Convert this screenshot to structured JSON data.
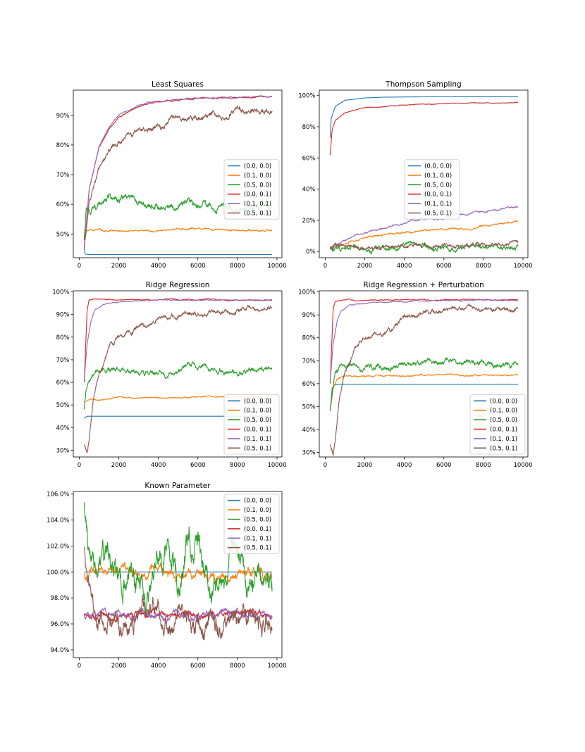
{
  "colors": {
    "C0": "#1f77b4",
    "C1": "#ff7f0e",
    "C2": "#2ca02c",
    "C3": "#d62728",
    "C4": "#9467bd",
    "C5": "#8c564b"
  },
  "legend_labels": [
    "(0.0, 0.0)",
    "(0.1, 0.0)",
    "(0.5, 0.0)",
    "(0.0, 0.1)",
    "(0.1, 0.1)",
    "(0.5, 0.1)"
  ],
  "chart_data": [
    {
      "type": "line",
      "title": "Least Squares",
      "xlim": [
        -300,
        10250
      ],
      "ylim": [
        42,
        98.5
      ],
      "xticks": [
        0,
        2000,
        4000,
        6000,
        8000,
        10000
      ],
      "xtick_labels": [
        "0",
        "2000",
        "4000",
        "6000",
        "8000",
        "10000"
      ],
      "yticks": [
        50,
        60,
        70,
        80,
        90
      ],
      "ytick_labels": [
        "50%",
        "60%",
        "70%",
        "80%",
        "90%"
      ],
      "legend": "center-right",
      "series": [
        {
          "name": "(0.0, 0.0)",
          "color": "#1f77b4",
          "x": [
            250,
            300,
            500,
            1000,
            9750
          ],
          "y": [
            45,
            43.2,
            43.1,
            43.1,
            43.1
          ],
          "noise": 0
        },
        {
          "name": "(0.1, 0.0)",
          "color": "#ff7f0e",
          "x": [
            250,
            300,
            500,
            2000,
            4000,
            6000,
            8000,
            9750
          ],
          "y": [
            48,
            51.5,
            51.5,
            51.2,
            51.2,
            51.8,
            51.2,
            51.2
          ],
          "noise": 0.3
        },
        {
          "name": "(0.5, 0.0)",
          "color": "#2ca02c",
          "x": [
            250,
            350,
            500,
            1000,
            1500,
            2000,
            3000,
            4000,
            5000,
            5800,
            6000,
            7000,
            8000,
            9000,
            9750
          ],
          "y": [
            48,
            57,
            58.5,
            60,
            62,
            61,
            60.5,
            60,
            59.5,
            61.5,
            60,
            59,
            58.5,
            59,
            59.5
          ],
          "noise": 1.3
        },
        {
          "name": "(0.0, 0.1)",
          "color": "#d62728",
          "x": [
            250,
            500,
            1000,
            1500,
            2000,
            3000,
            4000,
            5000,
            6000,
            7000,
            8000,
            9000,
            9750
          ],
          "y": [
            45,
            65,
            79,
            85.5,
            89.5,
            93,
            94.5,
            95.2,
            95.7,
            96,
            96,
            96.1,
            96.2
          ],
          "noise": 0.2
        },
        {
          "name": "(0.1, 0.1)",
          "color": "#9467bd",
          "x": [
            250,
            500,
            1000,
            1500,
            2000,
            3000,
            4000,
            5000,
            6000,
            7000,
            8000,
            9000,
            9750
          ],
          "y": [
            45,
            65,
            79.5,
            86,
            90,
            93.4,
            94.8,
            95.3,
            95.6,
            95.9,
            96,
            96.1,
            96.2
          ],
          "noise": 0.2
        },
        {
          "name": "(0.5, 0.1)",
          "color": "#8c564b",
          "x": [
            250,
            500,
            1000,
            1500,
            2000,
            3000,
            4000,
            5000,
            6000,
            7000,
            8000,
            9000,
            9750
          ],
          "y": [
            45,
            62,
            73,
            78,
            81,
            84,
            86.5,
            89,
            89,
            90,
            91,
            91.5,
            92
          ],
          "noise": 1.0
        }
      ]
    },
    {
      "type": "line",
      "title": "Thompson Sampling",
      "xlim": [
        -300,
        10250
      ],
      "ylim": [
        -4,
        103.5
      ],
      "xticks": [
        0,
        2000,
        4000,
        6000,
        8000,
        10000
      ],
      "xtick_labels": [
        "0",
        "2000",
        "4000",
        "6000",
        "8000",
        "10000"
      ],
      "yticks": [
        0,
        20,
        40,
        60,
        80,
        100
      ],
      "ytick_labels": [
        "0%",
        "20%",
        "40%",
        "60%",
        "80%",
        "100%"
      ],
      "legend": "center",
      "series": [
        {
          "name": "(0.0, 0.0)",
          "color": "#1f77b4",
          "x": [
            250,
            300,
            500,
            1000,
            2000,
            3000,
            5000,
            9750
          ],
          "y": [
            73,
            85,
            93,
            97,
            98.5,
            99,
            99.2,
            99.3
          ],
          "noise": 0
        },
        {
          "name": "(0.1, 0.0)",
          "color": "#ff7f0e",
          "x": [
            250,
            1000,
            2000,
            4000,
            6000,
            8000,
            9750
          ],
          "y": [
            2,
            6,
            9,
            12,
            14,
            16,
            18.5
          ],
          "noise": 0.6
        },
        {
          "name": "(0.5, 0.0)",
          "color": "#2ca02c",
          "x": [
            250,
            1000,
            2000,
            3000,
            4000,
            6000,
            8000,
            9750
          ],
          "y": [
            3,
            1.5,
            1,
            2,
            3,
            2.5,
            3,
            3
          ],
          "noise": 1.6
        },
        {
          "name": "(0.0, 0.1)",
          "color": "#d62728",
          "x": [
            250,
            350,
            500,
            1000,
            2000,
            3000,
            4000,
            6000,
            8000,
            9750
          ],
          "y": [
            62,
            78,
            84,
            89,
            92,
            93,
            94,
            94.8,
            95.3,
            95.5
          ],
          "noise": 0.2
        },
        {
          "name": "(0.1, 0.1)",
          "color": "#9467bd",
          "x": [
            250,
            1000,
            2000,
            4000,
            6000,
            8000,
            9750
          ],
          "y": [
            3,
            8,
            12,
            18,
            22,
            26,
            29.5
          ],
          "noise": 0.6
        },
        {
          "name": "(0.5, 0.1)",
          "color": "#8c564b",
          "x": [
            250,
            1000,
            2000,
            3000,
            4000,
            6000,
            8000,
            9750
          ],
          "y": [
            3,
            3,
            2.5,
            3,
            3.5,
            4,
            5,
            5
          ],
          "noise": 1.2
        }
      ]
    },
    {
      "type": "line",
      "title": "Ridge Regression",
      "xlim": [
        -300,
        10250
      ],
      "ylim": [
        27,
        100.5
      ],
      "xticks": [
        0,
        2000,
        4000,
        6000,
        8000,
        10000
      ],
      "xtick_labels": [
        "0",
        "2000",
        "4000",
        "6000",
        "8000",
        "10000"
      ],
      "yticks": [
        30,
        40,
        50,
        60,
        70,
        80,
        90,
        100
      ],
      "ytick_labels": [
        "30%",
        "40%",
        "50%",
        "60%",
        "70%",
        "80%",
        "90%",
        "100%"
      ],
      "legend": "lower-right",
      "series": [
        {
          "name": "(0.0, 0.0)",
          "color": "#1f77b4",
          "x": [
            250,
            300,
            400,
            600,
            9750
          ],
          "y": [
            44,
            44.5,
            45,
            45,
            45
          ],
          "noise": 0
        },
        {
          "name": "(0.1, 0.0)",
          "color": "#ff7f0e",
          "x": [
            250,
            500,
            1000,
            2000,
            4000,
            5500,
            6000,
            8000,
            9750
          ],
          "y": [
            51.5,
            52,
            52.5,
            53,
            53,
            53.2,
            53.8,
            53.3,
            53
          ],
          "noise": 0.3
        },
        {
          "name": "(0.5, 0.0)",
          "color": "#2ca02c",
          "x": [
            250,
            350,
            500,
            800,
            1200,
            2000,
            3000,
            4000,
            5000,
            5800,
            6000,
            7000,
            8000,
            9000,
            9750
          ],
          "y": [
            48,
            57,
            62,
            65,
            66.5,
            66,
            65.5,
            65,
            65.5,
            68.5,
            66,
            65.5,
            65.5,
            65.3,
            65.5
          ],
          "noise": 1.2
        },
        {
          "name": "(0.0, 0.1)",
          "color": "#d62728",
          "x": [
            250,
            400,
            500,
            1000,
            2000,
            4000,
            6000,
            8000,
            9750
          ],
          "y": [
            60,
            92,
            96.5,
            96.7,
            96.6,
            96.6,
            96.5,
            96.4,
            96.3
          ],
          "noise": 0.2
        },
        {
          "name": "(0.1, 0.1)",
          "color": "#9467bd",
          "x": [
            250,
            400,
            600,
            800,
            1200,
            2000,
            3000,
            4000,
            6000,
            8000,
            9750
          ],
          "y": [
            61,
            77,
            87,
            92,
            94.5,
            95.5,
            96,
            96.3,
            96.4,
            96.4,
            96.4
          ],
          "noise": 0.2
        },
        {
          "name": "(0.5, 0.1)",
          "color": "#8c564b",
          "x": [
            250,
            400,
            500,
            700,
            1000,
            1500,
            2000,
            3000,
            4000,
            5000,
            6000,
            7000,
            8000,
            9000,
            9750
          ],
          "y": [
            32,
            29,
            35,
            52,
            63,
            74,
            80,
            85,
            88,
            90,
            91,
            91.5,
            92,
            92.5,
            92.5
          ],
          "noise": 1.0
        }
      ]
    },
    {
      "type": "line",
      "title": "Ridge Regression + Perturbation",
      "xlim": [
        -300,
        10250
      ],
      "ylim": [
        28,
        100.5
      ],
      "xticks": [
        0,
        2000,
        4000,
        6000,
        8000,
        10000
      ],
      "xtick_labels": [
        "0",
        "2000",
        "4000",
        "6000",
        "8000",
        "10000"
      ],
      "yticks": [
        30,
        40,
        50,
        60,
        70,
        80,
        90,
        100
      ],
      "ytick_labels": [
        "30%",
        "40%",
        "50%",
        "60%",
        "70%",
        "80%",
        "90%",
        "100%"
      ],
      "legend": "lower-right",
      "series": [
        {
          "name": "(0.0, 0.0)",
          "color": "#1f77b4",
          "x": [
            250,
            350,
            500,
            800,
            9750
          ],
          "y": [
            48,
            58,
            59.5,
            59.7,
            59.7
          ],
          "noise": 0
        },
        {
          "name": "(0.1, 0.0)",
          "color": "#ff7f0e",
          "x": [
            250,
            400,
            600,
            1000,
            2000,
            4000,
            6000,
            8000,
            9750
          ],
          "y": [
            48,
            58,
            62,
            63,
            63.5,
            63.5,
            64,
            63.5,
            63.5
          ],
          "noise": 0.3
        },
        {
          "name": "(0.5, 0.0)",
          "color": "#2ca02c",
          "x": [
            250,
            350,
            500,
            800,
            1200,
            2000,
            3000,
            4000,
            5000,
            6000,
            7000,
            8000,
            9000,
            9750
          ],
          "y": [
            48,
            56,
            63,
            66.5,
            67,
            67.5,
            68,
            69,
            69.5,
            70,
            68,
            68.5,
            68.5,
            68.5
          ],
          "noise": 1.2
        },
        {
          "name": "(0.0, 0.1)",
          "color": "#d62728",
          "x": [
            250,
            400,
            500,
            1000,
            2000,
            4000,
            6000,
            8000,
            9750
          ],
          "y": [
            60,
            92,
            95.5,
            96.3,
            96.5,
            96.6,
            96.6,
            96.5,
            96.4
          ],
          "noise": 0.2
        },
        {
          "name": "(0.1, 0.1)",
          "color": "#9467bd",
          "x": [
            250,
            400,
            600,
            800,
            1200,
            2000,
            3000,
            4000,
            6000,
            8000,
            9750
          ],
          "y": [
            61,
            77,
            87,
            91.5,
            94,
            95,
            95.8,
            96,
            96.3,
            96.4,
            96.4
          ],
          "noise": 0.2
        },
        {
          "name": "(0.5, 0.1)",
          "color": "#8c564b",
          "x": [
            250,
            400,
            500,
            700,
            1000,
            1500,
            2000,
            3000,
            4000,
            5000,
            6000,
            7000,
            8000,
            9000,
            9750
          ],
          "y": [
            33,
            30,
            36,
            52,
            64,
            74,
            79,
            84,
            88,
            91,
            92,
            92.5,
            93,
            93.5,
            93
          ],
          "noise": 1.0
        }
      ]
    },
    {
      "type": "line",
      "title": "Known Parameter",
      "xlim": [
        -300,
        10250
      ],
      "ylim": [
        93.4,
        106.2
      ],
      "xticks": [
        0,
        2000,
        4000,
        6000,
        8000,
        10000
      ],
      "xtick_labels": [
        "0",
        "2000",
        "4000",
        "6000",
        "8000",
        "10000"
      ],
      "yticks": [
        94,
        96,
        98,
        100,
        102,
        104,
        106
      ],
      "ytick_labels": [
        "94.0%",
        "96.0%",
        "98.0%",
        "100.0%",
        "102.0%",
        "104.0%",
        "106.0%"
      ],
      "legend": "upper-right",
      "series": [
        {
          "name": "(0.0, 0.0)",
          "color": "#1f77b4",
          "x": [
            250,
            9750
          ],
          "y": [
            100,
            100
          ],
          "noise": 0
        },
        {
          "name": "(0.1, 0.0)",
          "color": "#ff7f0e",
          "x": [
            250,
            1000,
            2000,
            3000,
            4000,
            5000,
            6000,
            7000,
            8000,
            9000,
            9750
          ],
          "y": [
            100,
            99.8,
            100.1,
            99.8,
            100,
            99.7,
            99.9,
            99.8,
            100,
            99.8,
            99.7
          ],
          "noise": 0.4
        },
        {
          "name": "(0.5, 0.0)",
          "color": "#2ca02c",
          "x": [
            250,
            500,
            1000,
            1500,
            2000,
            2500,
            3000,
            3500,
            4000,
            4500,
            5000,
            5500,
            6000,
            6500,
            7000,
            7500,
            8000,
            8500,
            9000,
            9500,
            9750
          ],
          "y": [
            105.5,
            100.5,
            99.5,
            101,
            99,
            100.5,
            99,
            98.5,
            100,
            102.5,
            98.5,
            101,
            103,
            99,
            98,
            100,
            101,
            99,
            101,
            99.5,
            98.5
          ],
          "noise": 1.1
        },
        {
          "name": "(0.0, 0.1)",
          "color": "#d62728",
          "x": [
            250,
            1000,
            2000,
            3000,
            4000,
            5000,
            6000,
            7000,
            8000,
            9000,
            9750
          ],
          "y": [
            96.8,
            96.8,
            96.6,
            96.8,
            96.6,
            96.8,
            96.7,
            96.6,
            96.8,
            96.7,
            96.7
          ],
          "noise": 0.25
        },
        {
          "name": "(0.1, 0.1)",
          "color": "#9467bd",
          "x": [
            250,
            1000,
            2000,
            3000,
            4000,
            5000,
            6000,
            7000,
            8000,
            9000,
            9750
          ],
          "y": [
            96.8,
            96.9,
            96.7,
            96.9,
            96.7,
            96.9,
            96.8,
            96.7,
            96.9,
            96.7,
            96.8
          ],
          "noise": 0.3
        },
        {
          "name": "(0.5, 0.1)",
          "color": "#8c564b",
          "x": [
            250,
            700,
            1000,
            1500,
            2000,
            2500,
            3000,
            3500,
            4000,
            4500,
            5000,
            5500,
            6000,
            6500,
            7000,
            7500,
            8000,
            8500,
            9000,
            9500,
            9750
          ],
          "y": [
            102,
            97.5,
            96.5,
            97,
            96.5,
            96,
            97,
            97.5,
            97.5,
            96,
            97,
            96.5,
            96,
            97,
            95.5,
            96.5,
            97.5,
            97,
            96.5,
            96,
            96
          ],
          "noise": 0.9
        }
      ]
    }
  ]
}
